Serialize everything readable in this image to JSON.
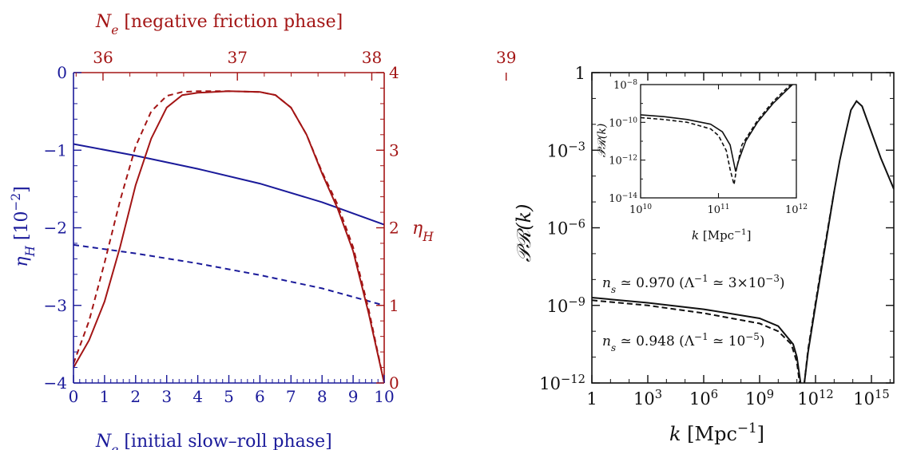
{
  "chart_data": [
    {
      "type": "line",
      "panel": "left",
      "colors": {
        "bottom_axis": "#1a1a9a",
        "top_axis": "#a31515"
      },
      "x_bottom": {
        "label_var": "N",
        "label_sub": "e",
        "label_text": "[initial slow–roll phase]",
        "range": [
          0,
          10
        ],
        "ticks": [
          "0",
          "1",
          "2",
          "3",
          "4",
          "5",
          "6",
          "7",
          "8",
          "9",
          "10"
        ]
      },
      "x_top": {
        "label_var": "N",
        "label_sub": "e",
        "label_text": "[negative friction phase]",
        "ticks": [
          {
            "value": 36,
            "label": "36"
          },
          {
            "value": 37,
            "label": "37"
          },
          {
            "value": 38,
            "label": "38"
          },
          {
            "value": 39,
            "label": "39"
          }
        ],
        "mapping": {
          "top_value": 36,
          "at_bottom": 0.95,
          "units_per_bottom_unit": 0.2312
        }
      },
      "y_left": {
        "label_var": "η",
        "label_sub": "H",
        "label_unit": "[10",
        "label_exp": "−2",
        "label_close": "]",
        "range": [
          -4,
          0
        ],
        "ticks": [
          "−4",
          "−3",
          "−2",
          "−1",
          "0"
        ]
      },
      "y_right": {
        "label_var": "η",
        "label_sub": "H",
        "range": [
          0,
          4
        ],
        "ticks": [
          "0",
          "1",
          "2",
          "3",
          "4"
        ]
      },
      "series": [
        {
          "axis": "left",
          "style": "solid",
          "x": [
            0,
            2,
            4,
            6,
            8,
            10
          ],
          "y": [
            -0.92,
            -1.07,
            -1.24,
            -1.43,
            -1.67,
            -1.96
          ]
        },
        {
          "axis": "left",
          "style": "dashed",
          "x": [
            0,
            2,
            4,
            6,
            8,
            10
          ],
          "y": [
            -2.22,
            -2.33,
            -2.46,
            -2.61,
            -2.78,
            -3.0
          ]
        },
        {
          "axis": "right",
          "style": "solid",
          "x": [
            0,
            0.5,
            1.0,
            1.5,
            2.0,
            2.5,
            3.0,
            3.5,
            4.0,
            5.0,
            6.0,
            6.5,
            7.0,
            7.5,
            8.0,
            8.5,
            9.0,
            9.5,
            10.0
          ],
          "y": [
            0.2,
            0.55,
            1.05,
            1.75,
            2.55,
            3.15,
            3.55,
            3.71,
            3.74,
            3.76,
            3.75,
            3.71,
            3.55,
            3.2,
            2.7,
            2.25,
            1.7,
            0.9,
            0.0
          ]
        },
        {
          "axis": "right",
          "style": "dashed",
          "x": [
            0,
            0.5,
            1.0,
            1.5,
            2.0,
            2.5,
            3.0,
            3.5,
            4.0,
            5.0,
            6.0,
            6.5,
            7.0,
            7.5,
            8.0,
            8.5,
            9.0,
            9.5,
            10.0
          ],
          "y": [
            0.25,
            0.8,
            1.55,
            2.35,
            3.05,
            3.5,
            3.7,
            3.75,
            3.76,
            3.76,
            3.75,
            3.71,
            3.55,
            3.2,
            2.72,
            2.3,
            1.75,
            0.95,
            0.0
          ]
        }
      ]
    },
    {
      "type": "line",
      "panel": "right",
      "color": "#111111",
      "xscale": "log",
      "yscale": "log",
      "xlabel_var": "k",
      "xlabel_unit": "[Mpc",
      "xlabel_exp": "−1",
      "xlabel_close": "]",
      "ylabel": "𝒫ℛ(k)",
      "xlim_log10": [
        0,
        16.2
      ],
      "ylim_log10": [
        -12,
        0
      ],
      "x_ticks": [
        {
          "pos": 0,
          "base": "1",
          "exp": ""
        },
        {
          "pos": 3,
          "base": "10",
          "exp": "3"
        },
        {
          "pos": 6,
          "base": "10",
          "exp": "6"
        },
        {
          "pos": 9,
          "base": "10",
          "exp": "9"
        },
        {
          "pos": 12,
          "base": "10",
          "exp": "12"
        },
        {
          "pos": 15,
          "base": "10",
          "exp": "15"
        }
      ],
      "y_ticks": [
        {
          "pos": 0,
          "base": "1",
          "exp": ""
        },
        {
          "pos": -3,
          "base": "10",
          "exp": "−3"
        },
        {
          "pos": -6,
          "base": "10",
          "exp": "−6"
        },
        {
          "pos": -9,
          "base": "10",
          "exp": "−9"
        },
        {
          "pos": -12,
          "base": "10",
          "exp": "−12"
        }
      ],
      "annotations": [
        {
          "ns": "n",
          "ns_sub": "s",
          "text": " ≃ 0.970  (Λ",
          "exp1": "−1",
          "text2": " ≃ 3×10",
          "exp2": "−3",
          "close": ")"
        },
        {
          "ns": "n",
          "ns_sub": "s",
          "text": " ≃ 0.948  (Λ",
          "exp1": "−1",
          "text2": " ≃ 10",
          "exp2": "−5",
          "close": ")"
        }
      ],
      "series": [
        {
          "style": "solid",
          "log10_k": [
            0,
            3,
            6,
            9,
            10,
            10.8,
            11.0,
            11.2,
            11.3,
            11.4,
            11.6,
            12.0,
            12.5,
            13.0,
            13.3,
            13.6,
            13.9,
            14.2,
            14.5,
            15.0,
            15.5,
            16.2
          ],
          "log10_P": [
            -8.7,
            -8.9,
            -9.15,
            -9.5,
            -9.8,
            -10.5,
            -11.0,
            -12.0,
            -13.0,
            -12.0,
            -10.8,
            -9.0,
            -6.8,
            -4.6,
            -3.4,
            -2.4,
            -1.45,
            -1.1,
            -1.3,
            -2.3,
            -3.3,
            -4.5
          ]
        },
        {
          "style": "dashed",
          "log10_k": [
            0,
            3,
            6,
            9,
            10,
            10.7,
            11.0,
            11.2,
            11.3,
            11.4,
            11.6,
            12.0,
            12.5,
            13.0
          ],
          "log10_P": [
            -8.8,
            -9.0,
            -9.3,
            -9.7,
            -10.0,
            -10.5,
            -11.2,
            -12.3,
            -13.0,
            -12.0,
            -10.7,
            -8.9,
            -6.7,
            -4.6
          ]
        }
      ],
      "inset": {
        "xlim_log10": [
          10,
          12
        ],
        "ylim_log10": [
          -14,
          -8
        ],
        "x_ticks": [
          {
            "pos": 10,
            "base": "10",
            "exp": "10"
          },
          {
            "pos": 11,
            "base": "10",
            "exp": "11"
          },
          {
            "pos": 12,
            "base": "10",
            "exp": "12"
          }
        ],
        "y_ticks": [
          {
            "pos": -8,
            "base": "10",
            "exp": "−8"
          },
          {
            "pos": -10,
            "base": "10",
            "exp": "−10"
          },
          {
            "pos": -12,
            "base": "10",
            "exp": "−12"
          },
          {
            "pos": -14,
            "base": "10",
            "exp": "−14"
          }
        ],
        "xlabel_var": "k",
        "xlabel_unit": "[Mpc",
        "xlabel_exp": "−1",
        "xlabel_close": "]",
        "ylabel": "𝒫ℛ(k)",
        "series": [
          {
            "style": "solid",
            "log10_k": [
              10,
              10.3,
              10.6,
              10.9,
              11.05,
              11.15,
              11.2,
              11.22,
              11.26,
              11.35,
              11.5,
              11.7,
              11.9,
              12.0
            ],
            "log10_P": [
              -9.6,
              -9.7,
              -9.85,
              -10.1,
              -10.5,
              -11.2,
              -12.2,
              -12.6,
              -12.0,
              -11.0,
              -10.0,
              -9.0,
              -8.2,
              -7.8
            ]
          },
          {
            "style": "dashed",
            "log10_k": [
              10,
              10.3,
              10.6,
              10.9,
              11.0,
              11.1,
              11.15,
              11.2,
              11.23,
              11.3,
              11.5,
              11.7,
              11.9,
              12.0
            ],
            "log10_P": [
              -9.75,
              -9.85,
              -10.0,
              -10.35,
              -10.7,
              -11.5,
              -12.5,
              -13.3,
              -12.5,
              -11.2,
              -9.9,
              -8.9,
              -8.1,
              -7.8
            ]
          }
        ]
      }
    }
  ]
}
